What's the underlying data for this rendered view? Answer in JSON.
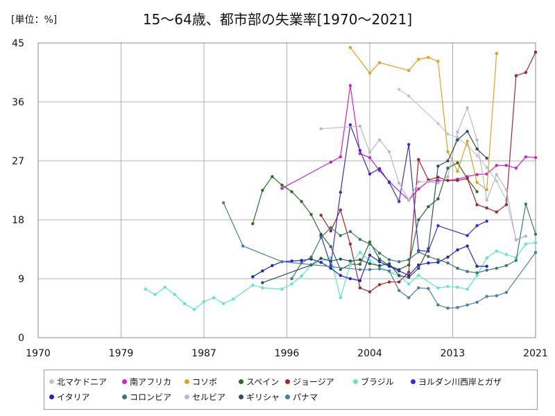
{
  "header": {
    "unit": "[単位：%]",
    "title": "15〜64歳、都市部の失業率[1970〜2021]"
  },
  "chart_data": {
    "type": "line",
    "title": "15〜64歳、都市部の失業率[1970〜2021]",
    "unit": "[単位：%]",
    "xlabel": "",
    "ylabel": "",
    "xlim": [
      1970,
      2021
    ],
    "ylim": [
      0,
      45
    ],
    "x_ticks": [
      "1970",
      "1979",
      "1987",
      "1996",
      "2004",
      "2013",
      "2021"
    ],
    "x_tick_values": [
      1970,
      1978.5,
      1987,
      1995.5,
      2004,
      2012.5,
      2021
    ],
    "y_ticks": [
      0,
      9,
      18,
      27,
      36,
      45
    ],
    "grid": true,
    "legend_position": "bottom",
    "series": [
      {
        "name": "北マケドニア",
        "color": "#b8c9d9",
        "points": [
          [
            2007,
            37.9
          ],
          [
            2008,
            36.9
          ],
          [
            2011,
            32.7
          ],
          [
            2012,
            31.1
          ],
          [
            2013,
            30.6
          ],
          [
            2014,
            29.4
          ],
          [
            2015,
            27.8
          ],
          [
            2016,
            26.0
          ],
          [
            2017,
            23.9
          ],
          [
            2018,
            21.0
          ],
          [
            2019,
            15.0
          ],
          [
            2020,
            15.5
          ]
        ]
      },
      {
        "name": "南アフリカ",
        "color": "#cc22cc",
        "points": [
          [
            1995,
            22.8
          ],
          [
            2000,
            26.8
          ],
          [
            2001,
            27.6
          ],
          [
            2002,
            38.5
          ],
          [
            2003,
            28.1
          ],
          [
            2004,
            27.5
          ],
          [
            2005,
            25.5
          ],
          [
            2006,
            23.8
          ],
          [
            2008,
            21.0
          ],
          [
            2009,
            22.7
          ],
          [
            2010,
            23.9
          ],
          [
            2011,
            24.0
          ],
          [
            2012,
            24.0
          ],
          [
            2013,
            24.2
          ],
          [
            2014,
            24.6
          ],
          [
            2015,
            24.9
          ],
          [
            2016,
            25.0
          ],
          [
            2017,
            26.3
          ],
          [
            2018,
            26.3
          ],
          [
            2019,
            25.9
          ],
          [
            2020,
            27.6
          ],
          [
            2021,
            27.5
          ]
        ]
      },
      {
        "name": "コソボ",
        "color": "#e0a21e",
        "points": [
          [
            2002,
            44.3
          ],
          [
            2004,
            40.4
          ],
          [
            2005,
            42.0
          ],
          [
            2008,
            40.8
          ],
          [
            2009,
            42.5
          ],
          [
            2010,
            42.8
          ],
          [
            2011,
            42.2
          ],
          [
            2012,
            28.4
          ],
          [
            2013,
            25.4
          ],
          [
            2014,
            30.0
          ],
          [
            2015,
            23.7
          ],
          [
            2016,
            22.6
          ],
          [
            2017,
            43.4
          ]
        ]
      },
      {
        "name": "スペイン",
        "color": "#2e6b2e",
        "points": [
          [
            1992,
            17.4
          ],
          [
            1993,
            22.5
          ],
          [
            1994,
            24.6
          ],
          [
            1995,
            23.3
          ],
          [
            1996,
            22.3
          ],
          [
            1997,
            20.8
          ],
          [
            1998,
            18.8
          ],
          [
            1999,
            15.8
          ],
          [
            2000,
            13.9
          ],
          [
            2001,
            10.4
          ],
          [
            2002,
            11.2
          ],
          [
            2003,
            11.2
          ],
          [
            2004,
            14.6
          ],
          [
            2005,
            12.0
          ],
          [
            2006,
            11.0
          ],
          [
            2007,
            10.4
          ],
          [
            2008,
            11.1
          ],
          [
            2009,
            18.0
          ],
          [
            2010,
            20.0
          ],
          [
            2011,
            21.2
          ],
          [
            2012,
            25.9
          ],
          [
            2013,
            26.7
          ],
          [
            2014,
            24.3
          ],
          [
            2015,
            22.3
          ]
        ]
      },
      {
        "name": "ジョージア",
        "color": "#a02828",
        "points": [
          [
            1999,
            18.7
          ],
          [
            2000,
            16.3
          ],
          [
            2001,
            19.5
          ],
          [
            2002,
            14.3
          ],
          [
            2003,
            7.6
          ],
          [
            2004,
            7.0
          ],
          [
            2005,
            8.1
          ],
          [
            2006,
            8.5
          ],
          [
            2007,
            8.5
          ],
          [
            2008,
            10.0
          ],
          [
            2009,
            27.2
          ],
          [
            2010,
            24.1
          ],
          [
            2011,
            24.5
          ],
          [
            2012,
            24.0
          ],
          [
            2013,
            24.0
          ],
          [
            2014,
            24.3
          ],
          [
            2015,
            20.3
          ],
          [
            2016,
            19.8
          ],
          [
            2017,
            19.2
          ],
          [
            2018,
            20.3
          ],
          [
            2019,
            40.0
          ],
          [
            2020,
            40.5
          ],
          [
            2021,
            43.6
          ]
        ]
      },
      {
        "name": "ブラジル",
        "color": "#5ce8c0",
        "points": [
          [
            1981,
            7.4
          ],
          [
            1982,
            6.6
          ],
          [
            1983,
            7.7
          ],
          [
            1984,
            6.6
          ],
          [
            1985,
            5.2
          ],
          [
            1986,
            4.3
          ],
          [
            1987,
            5.5
          ],
          [
            1988,
            6.1
          ],
          [
            1989,
            5.2
          ],
          [
            1990,
            5.9
          ],
          [
            1992,
            8.0
          ],
          [
            1993,
            7.6
          ],
          [
            1995,
            7.4
          ],
          [
            1996,
            8.2
          ],
          [
            1997,
            9.4
          ],
          [
            1998,
            11.1
          ],
          [
            2000,
            12.2
          ],
          [
            2001,
            6.1
          ],
          [
            2002,
            11.2
          ],
          [
            2003,
            13.0
          ],
          [
            2004,
            11.8
          ],
          [
            2005,
            10.8
          ],
          [
            2006,
            10.1
          ],
          [
            2007,
            9.4
          ],
          [
            2008,
            8.2
          ],
          [
            2009,
            9.5
          ],
          [
            2011,
            7.6
          ],
          [
            2012,
            7.8
          ],
          [
            2013,
            7.7
          ],
          [
            2014,
            7.4
          ],
          [
            2015,
            9.5
          ],
          [
            2016,
            12.2
          ],
          [
            2017,
            13.2
          ],
          [
            2018,
            12.7
          ],
          [
            2019,
            12.2
          ],
          [
            2020,
            14.3
          ],
          [
            2021,
            14.5
          ]
        ]
      },
      {
        "name": "ヨルダン川西岸とガザ",
        "color": "#3a2ad8",
        "points": [
          [
            1999,
            15.6
          ],
          [
            2000,
            11.0
          ],
          [
            2001,
            22.2
          ],
          [
            2002,
            32.5
          ],
          [
            2003,
            28.6
          ],
          [
            2004,
            25.0
          ],
          [
            2005,
            25.8
          ],
          [
            2006,
            23.7
          ],
          [
            2007,
            20.8
          ],
          [
            2008,
            29.5
          ],
          [
            2009,
            13.3
          ],
          [
            2010,
            13.2
          ],
          [
            2011,
            17.1
          ],
          [
            2014,
            15.6
          ],
          [
            2015,
            17.1
          ],
          [
            2016,
            17.8
          ]
        ]
      },
      {
        "name": "イタリア",
        "color": "#2222cc",
        "points": [
          [
            1992,
            9.3
          ],
          [
            1993,
            10.2
          ],
          [
            1994,
            11.0
          ],
          [
            1995,
            11.6
          ],
          [
            1996,
            11.7
          ],
          [
            1997,
            11.8
          ],
          [
            1998,
            12.0
          ],
          [
            1999,
            11.5
          ],
          [
            2000,
            10.6
          ],
          [
            2001,
            9.5
          ],
          [
            2002,
            9.0
          ],
          [
            2003,
            8.7
          ],
          [
            2004,
            12.6
          ],
          [
            2005,
            11.6
          ],
          [
            2006,
            10.9
          ],
          [
            2007,
            10.2
          ],
          [
            2008,
            9.5
          ],
          [
            2009,
            11.1
          ],
          [
            2010,
            11.4
          ],
          [
            2011,
            11.5
          ],
          [
            2012,
            12.3
          ],
          [
            2013,
            13.4
          ],
          [
            2014,
            14.0
          ],
          [
            2015,
            10.9
          ],
          [
            2016,
            10.9
          ]
        ]
      },
      {
        "name": "コロンビア",
        "color": "#3a7a6e",
        "points": [
          [
            1996,
            9.0
          ],
          [
            1997,
            11.4
          ],
          [
            1998,
            12.3
          ],
          [
            1999,
            15.3
          ],
          [
            2000,
            16.8
          ],
          [
            2001,
            15.6
          ],
          [
            2002,
            16.2
          ],
          [
            2003,
            15.0
          ],
          [
            2004,
            14.3
          ],
          [
            2005,
            12.9
          ],
          [
            2006,
            11.9
          ],
          [
            2007,
            11.6
          ],
          [
            2008,
            11.9
          ],
          [
            2009,
            13.1
          ],
          [
            2010,
            12.4
          ],
          [
            2011,
            11.9
          ],
          [
            2012,
            11.4
          ],
          [
            2013,
            10.6
          ],
          [
            2014,
            10.1
          ],
          [
            2015,
            9.9
          ],
          [
            2016,
            10.3
          ],
          [
            2017,
            10.6
          ],
          [
            2018,
            11.0
          ],
          [
            2019,
            11.8
          ],
          [
            2020,
            20.4
          ],
          [
            2021,
            15.8
          ]
        ]
      },
      {
        "name": "セルビア",
        "color": "#b8b8c8",
        "points": [
          [
            1999,
            31.9
          ],
          [
            2003,
            32.3
          ],
          [
            2004,
            28.3
          ],
          [
            2005,
            30.2
          ],
          [
            2006,
            28.4
          ],
          [
            2007,
            23.6
          ],
          [
            2008,
            21.0
          ],
          [
            2009,
            23.8
          ],
          [
            2010,
            23.8
          ],
          [
            2011,
            23.6
          ],
          [
            2012,
            24.6
          ],
          [
            2013,
            31.4
          ],
          [
            2014,
            35.1
          ],
          [
            2015,
            30.2
          ],
          [
            2016,
            21.0
          ],
          [
            2017,
            24.9
          ],
          [
            2018,
            22.6
          ],
          [
            2019,
            14.9
          ],
          [
            2020,
            15.5
          ]
        ]
      },
      {
        "name": "ギリシャ",
        "color": "#2e4e5e",
        "points": [
          [
            1993,
            8.4
          ],
          [
            1998,
            11.1
          ],
          [
            1999,
            12.1
          ],
          [
            2000,
            11.7
          ],
          [
            2001,
            12.0
          ],
          [
            2002,
            11.7
          ],
          [
            2003,
            11.9
          ],
          [
            2004,
            11.3
          ],
          [
            2005,
            11.0
          ],
          [
            2006,
            11.3
          ],
          [
            2007,
            9.5
          ],
          [
            2008,
            9.2
          ],
          [
            2009,
            10.6
          ],
          [
            2010,
            13.6
          ],
          [
            2011,
            26.2
          ],
          [
            2012,
            27.0
          ],
          [
            2013,
            30.2
          ],
          [
            2014,
            31.5
          ],
          [
            2015,
            28.8
          ],
          [
            2016,
            27.4
          ]
        ]
      },
      {
        "name": "パナマ",
        "color": "#4a7ea0",
        "points": [
          [
            1989,
            20.6
          ],
          [
            1991,
            14.0
          ],
          [
            1995,
            11.6
          ],
          [
            2003,
            10.4
          ],
          [
            2004,
            10.4
          ],
          [
            2005,
            10.5
          ],
          [
            2006,
            10.2
          ],
          [
            2007,
            7.2
          ],
          [
            2008,
            6.1
          ],
          [
            2009,
            7.6
          ],
          [
            2010,
            7.5
          ],
          [
            2011,
            5.0
          ],
          [
            2012,
            4.5
          ],
          [
            2013,
            4.6
          ],
          [
            2014,
            5.0
          ],
          [
            2015,
            5.4
          ],
          [
            2016,
            6.3
          ],
          [
            2017,
            6.4
          ],
          [
            2018,
            6.9
          ],
          [
            2021,
            13.0
          ]
        ]
      }
    ]
  }
}
